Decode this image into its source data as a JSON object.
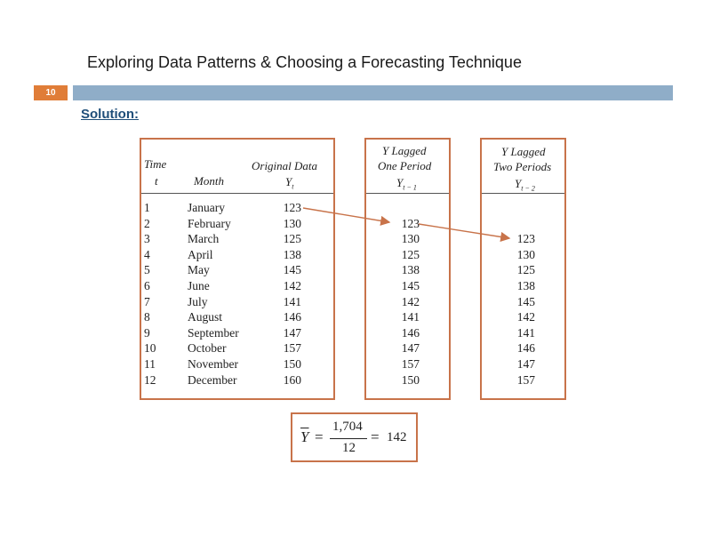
{
  "slide": {
    "title": "Exploring Data Patterns & Choosing a Forecasting Technique",
    "number": "10",
    "solution_label": "Solution:"
  },
  "table": {
    "col_time_top": "Time",
    "col_time_sub": "t",
    "col_month": "Month",
    "col_original": "Original Data",
    "col_original_sub": "Y",
    "col_original_sub_index": "t",
    "lag1_line1": "Y Lagged",
    "lag1_line2": "One Period",
    "lag1_sym": "Y",
    "lag1_index": "t − 1",
    "lag2_line1": "Y Lagged",
    "lag2_line2": "Two Periods",
    "lag2_sym": "Y",
    "lag2_index": "t − 2",
    "rows": [
      {
        "t": "1",
        "month": "January",
        "y": "123"
      },
      {
        "t": "2",
        "month": "February",
        "y": "130"
      },
      {
        "t": "3",
        "month": "March",
        "y": "125"
      },
      {
        "t": "4",
        "month": "April",
        "y": "138"
      },
      {
        "t": "5",
        "month": "May",
        "y": "145"
      },
      {
        "t": "6",
        "month": "June",
        "y": "142"
      },
      {
        "t": "7",
        "month": "July",
        "y": "141"
      },
      {
        "t": "8",
        "month": "August",
        "y": "146"
      },
      {
        "t": "9",
        "month": "September",
        "y": "147"
      },
      {
        "t": "10",
        "month": "October",
        "y": "157"
      },
      {
        "t": "11",
        "month": "November",
        "y": "150"
      },
      {
        "t": "12",
        "month": "December",
        "y": "160"
      }
    ],
    "lag1_values": [
      "123",
      "130",
      "125",
      "138",
      "145",
      "142",
      "141",
      "146",
      "147",
      "157",
      "150"
    ],
    "lag2_values": [
      "123",
      "130",
      "125",
      "138",
      "145",
      "142",
      "141",
      "146",
      "147",
      "157"
    ]
  },
  "formula": {
    "lhs": "Y",
    "numerator": "1,704",
    "denominator": "12",
    "result": "142",
    "eq": "=",
    "eq2": "="
  },
  "colors": {
    "accent_orange": "#e07d38",
    "title_bar": "#8fadc8",
    "panel_border": "#c8734a",
    "solution_text": "#1f4e79"
  }
}
